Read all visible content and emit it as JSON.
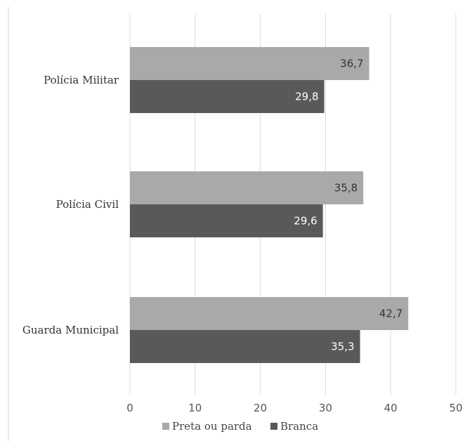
{
  "chart_data": {
    "type": "bar",
    "orientation": "horizontal",
    "categories": [
      "Polícia Militar",
      "Polícia Civil",
      "Guarda Municipal"
    ],
    "series": [
      {
        "name": "Preta ou parda",
        "values": [
          36.7,
          35.8,
          42.7
        ],
        "labels": [
          "36,7",
          "35,8",
          "42,7"
        ],
        "color": "#a9a9a9"
      },
      {
        "name": "Branca",
        "values": [
          29.8,
          29.6,
          35.3
        ],
        "labels": [
          "29,8",
          "29,6",
          "35,3"
        ],
        "color": "#595959"
      }
    ],
    "xlim": [
      0,
      50
    ],
    "xticks": [
      0,
      10,
      20,
      30,
      40,
      50
    ],
    "xtick_labels": [
      "0",
      "10",
      "20",
      "30",
      "40",
      "50"
    ],
    "grid": true,
    "legend": "bottom",
    "colors": {
      "grid": "#d9d9d9",
      "frame": "#d0d0d0",
      "label_on_light": "#333333",
      "label_on_dark": "#ffffff"
    }
  }
}
